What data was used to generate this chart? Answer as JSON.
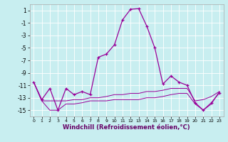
{
  "xlabel": "Windchill (Refroidissement éolien,°C)",
  "x": [
    0,
    1,
    2,
    3,
    4,
    5,
    6,
    7,
    8,
    9,
    10,
    11,
    12,
    13,
    14,
    15,
    16,
    17,
    18,
    19,
    20,
    21,
    22,
    23
  ],
  "y_main": [
    -10.5,
    -13.3,
    -11.5,
    -15.0,
    -11.5,
    -12.5,
    -12.0,
    -12.5,
    -6.5,
    -6.0,
    -4.5,
    -0.5,
    1.2,
    1.3,
    -1.5,
    -5.0,
    -10.8,
    -9.5,
    -10.5,
    -11.0,
    -13.8,
    -15.0,
    -13.8,
    -12.2
  ],
  "y_upper": [
    -10.5,
    -13.5,
    -13.5,
    -13.5,
    -13.5,
    -13.3,
    -13.3,
    -13.0,
    -13.0,
    -12.8,
    -12.5,
    -12.5,
    -12.3,
    -12.3,
    -12.0,
    -12.0,
    -11.8,
    -11.5,
    -11.5,
    -11.5,
    -13.5,
    -13.3,
    -12.8,
    -12.0
  ],
  "y_lower": [
    -10.5,
    -13.5,
    -15.0,
    -15.0,
    -14.0,
    -14.0,
    -13.8,
    -13.5,
    -13.5,
    -13.5,
    -13.3,
    -13.3,
    -13.3,
    -13.3,
    -13.0,
    -13.0,
    -12.8,
    -12.5,
    -12.3,
    -12.3,
    -14.0,
    -15.0,
    -14.0,
    -12.0
  ],
  "line_color": "#990099",
  "bg_color": "#c8eef0",
  "grid_color": "#ffffff",
  "ylim": [
    -16,
    2
  ],
  "yticks": [
    1,
    -1,
    -3,
    -5,
    -7,
    -9,
    -11,
    -13,
    -15
  ],
  "xlim_min": -0.5,
  "xlim_max": 23.5,
  "xticks": [
    0,
    1,
    2,
    3,
    4,
    5,
    6,
    7,
    8,
    9,
    10,
    11,
    12,
    13,
    14,
    15,
    16,
    17,
    18,
    19,
    20,
    21,
    22,
    23
  ]
}
